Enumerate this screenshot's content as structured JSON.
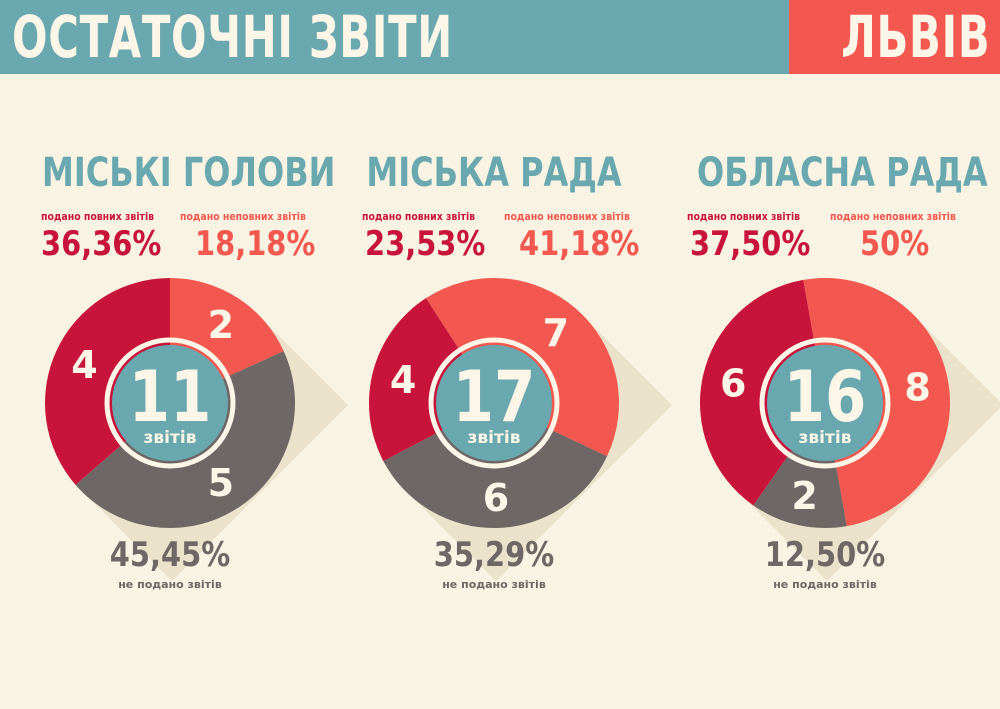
{
  "header": {
    "title": "ОСТАТОЧНІ ЗВІТИ",
    "city": "ЛЬВІВ"
  },
  "colors": {
    "header_bg": "#6aa8b0",
    "city_bg": "#f2584f",
    "full": "#c8143a",
    "partial": "#f2584f",
    "missing": "#6f6765",
    "center": "#6aa8b0",
    "background": "#f8f3e3"
  },
  "chart_data": [
    {
      "type": "pie",
      "title": "МІСЬКІ ГОЛОВИ",
      "total": 11,
      "total_unit": "звітів",
      "categories": [
        "подано повних звітів",
        "подано неповних звітів",
        "не подано звітів"
      ],
      "values": [
        4,
        2,
        5
      ],
      "percents": [
        "36,36%",
        "18,18%",
        "45,45%"
      ]
    },
    {
      "type": "pie",
      "title": "МІСЬКА РАДА",
      "total": 17,
      "total_unit": "звітів",
      "categories": [
        "подано повних звітів",
        "подано неповних звітів",
        "не подано звітів"
      ],
      "values": [
        4,
        7,
        6
      ],
      "percents": [
        "23,53%",
        "41,18%",
        "35,29%"
      ]
    },
    {
      "type": "pie",
      "title": "ОБЛАСНА РАДА",
      "total": 16,
      "total_unit": "звітів",
      "categories": [
        "подано повних звітів",
        "подано неповних звітів",
        "не подано звітів"
      ],
      "values": [
        6,
        8,
        2
      ],
      "percents": [
        "37,50%",
        "50%",
        "12,50%"
      ]
    }
  ]
}
